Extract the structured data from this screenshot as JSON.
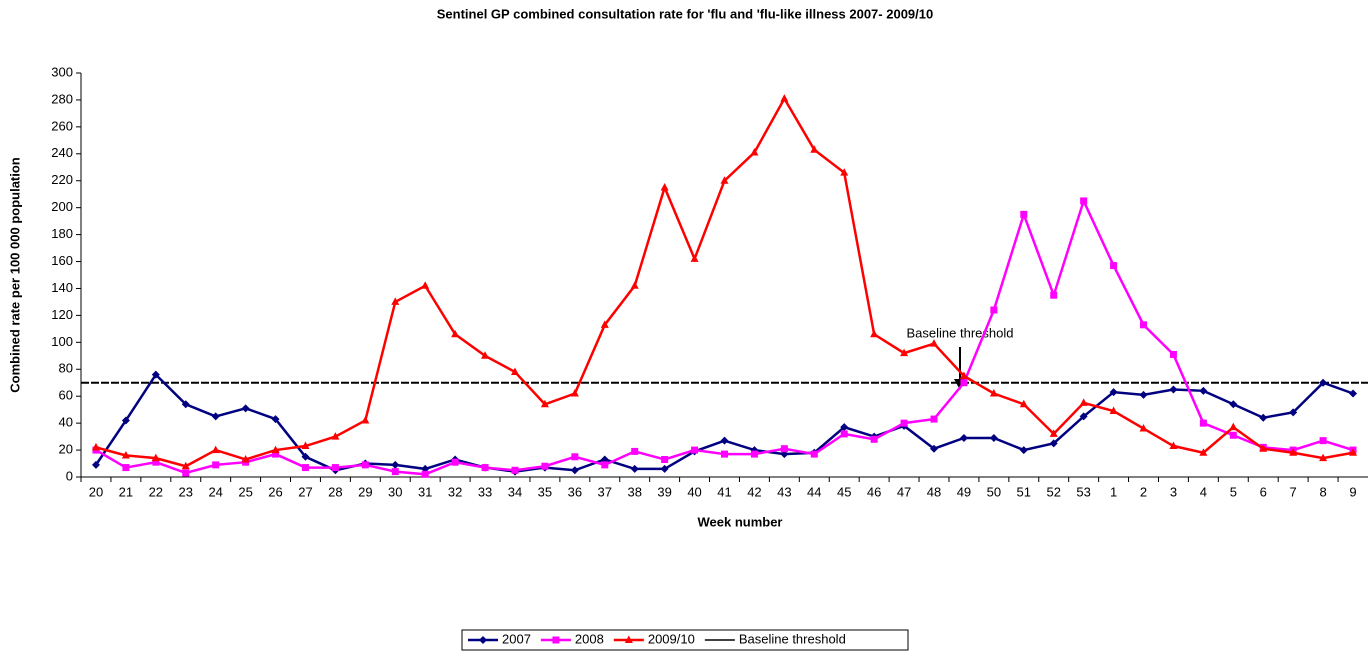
{
  "chart_data": {
    "type": "line",
    "title": "Sentinel GP combined consultation rate for 'flu and 'flu-like illness 2007- 2009/10",
    "x_label": "Week number",
    "y_label": "Combined rate per 100 000 population",
    "categories": [
      "20",
      "21",
      "22",
      "23",
      "24",
      "25",
      "26",
      "27",
      "28",
      "29",
      "30",
      "31",
      "32",
      "33",
      "34",
      "35",
      "36",
      "37",
      "38",
      "39",
      "40",
      "41",
      "42",
      "43",
      "44",
      "45",
      "46",
      "47",
      "48",
      "49",
      "50",
      "51",
      "52",
      "53",
      "1",
      "2",
      "3",
      "4",
      "5",
      "6",
      "7",
      "8",
      "9"
    ],
    "series": [
      {
        "name": "2007",
        "color": "#000080",
        "marker": "diamond",
        "values": [
          9,
          42,
          76,
          54,
          45,
          51,
          43,
          15,
          5,
          10,
          9,
          6,
          13,
          7,
          4,
          7,
          5,
          13,
          6,
          6,
          19,
          27,
          20,
          17,
          18,
          37,
          30,
          38,
          21,
          29,
          29,
          20,
          25,
          45,
          63,
          61,
          65,
          64,
          54,
          44,
          48,
          70,
          62
        ]
      },
      {
        "name": "2008",
        "color": "#ff00ff",
        "marker": "square",
        "values": [
          20,
          7,
          11,
          3,
          9,
          11,
          17,
          7,
          7,
          9,
          4,
          2,
          11,
          7,
          5,
          8,
          15,
          9,
          19,
          13,
          20,
          17,
          17,
          21,
          17,
          32,
          28,
          40,
          43,
          70,
          124,
          195,
          135,
          205,
          157,
          113,
          91,
          40,
          31,
          22,
          20,
          27,
          20
        ]
      },
      {
        "name": "2009/10",
        "color": "#ff0000",
        "marker": "triangle",
        "values": [
          22,
          16,
          14,
          8,
          20,
          13,
          20,
          23,
          30,
          42,
          130,
          142,
          106,
          90,
          78,
          54,
          62,
          113,
          142,
          215,
          162,
          220,
          241,
          281,
          243,
          226,
          106,
          92,
          99,
          75,
          62,
          54,
          32,
          55,
          49,
          36,
          23,
          18,
          37,
          21,
          18,
          14,
          18
        ]
      }
    ],
    "baseline": {
      "name": "Baseline threshold",
      "value": 70,
      "color": "#000000"
    },
    "annotation": "Baseline threshold",
    "ylim": [
      0,
      300
    ],
    "yticks": [
      0,
      20,
      40,
      60,
      80,
      100,
      120,
      140,
      160,
      180,
      200,
      220,
      240,
      260,
      280,
      300
    ],
    "legend": "bottom"
  }
}
